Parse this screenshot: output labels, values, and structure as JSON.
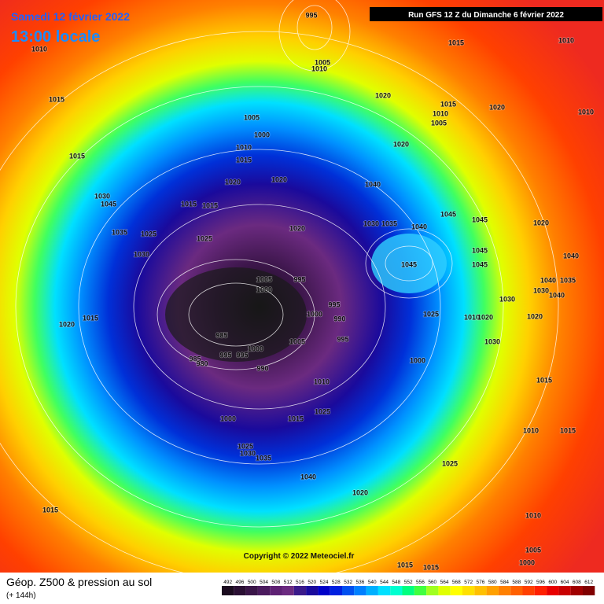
{
  "header": {
    "date": "Samedi 12 février 2022",
    "time": "13:00 locale",
    "run": "Run GFS 12 Z du Dimanche 6 février 2022",
    "copyright": "Copyright © 2022 Meteociel.fr"
  },
  "legend": {
    "title": "Géop. Z500 & pression au sol",
    "lead": "(+ 144h)"
  },
  "colorbar": {
    "values": [
      492,
      496,
      500,
      504,
      508,
      512,
      516,
      520,
      524,
      528,
      532,
      536,
      540,
      544,
      548,
      552,
      556,
      560,
      564,
      568,
      572,
      576,
      580,
      584,
      588,
      592,
      596,
      600,
      604,
      608,
      612
    ],
    "colors": [
      "#1a0a1e",
      "#2a0f33",
      "#3a1548",
      "#4b1b5e",
      "#5e2173",
      "#6b2a80",
      "#3a1a8a",
      "#1a0a9c",
      "#0000c8",
      "#0020e0",
      "#0050f0",
      "#0080ff",
      "#00b0ff",
      "#00e0ff",
      "#00ffd0",
      "#00ff80",
      "#40ff40",
      "#a0ff20",
      "#e0ff00",
      "#ffff00",
      "#ffe000",
      "#ffc000",
      "#ffa000",
      "#ff8000",
      "#ff6000",
      "#ff4000",
      "#ff2000",
      "#e80000",
      "#c80000",
      "#a00000",
      "#800000"
    ]
  },
  "isobar_labels": [
    "995",
    "1010",
    "1015",
    "1010",
    "1005",
    "1010",
    "1015",
    "1020",
    "1015",
    "1020",
    "1010",
    "1010",
    "1005",
    "1005",
    "1000",
    "1020",
    "1010",
    "1015",
    "1015",
    "1020",
    "1020",
    "1040",
    "1030",
    "1045",
    "1015",
    "1015",
    "1045",
    "1045",
    "1035",
    "1025",
    "1025",
    "1020",
    "1030",
    "1035",
    "1040",
    "1020",
    "1030",
    "1045",
    "1040",
    "1045",
    "1045",
    "1005",
    "995",
    "1000",
    "1040",
    "1035",
    "1030",
    "1040",
    "995",
    "1030",
    "1000",
    "1015",
    "1025",
    "990",
    "1010",
    "1020",
    "1020",
    "1020",
    "985",
    "995",
    "1005",
    "1030",
    "1000",
    "995",
    "995",
    "985",
    "980",
    "1000",
    "990",
    "1015",
    "1010",
    "1025",
    "1015",
    "1000",
    "1010",
    "1015",
    "1025",
    "1030",
    "1035",
    "1025",
    "1040",
    "1020",
    "1015",
    "1010",
    "1005",
    "1000",
    "1015",
    "1015"
  ]
}
